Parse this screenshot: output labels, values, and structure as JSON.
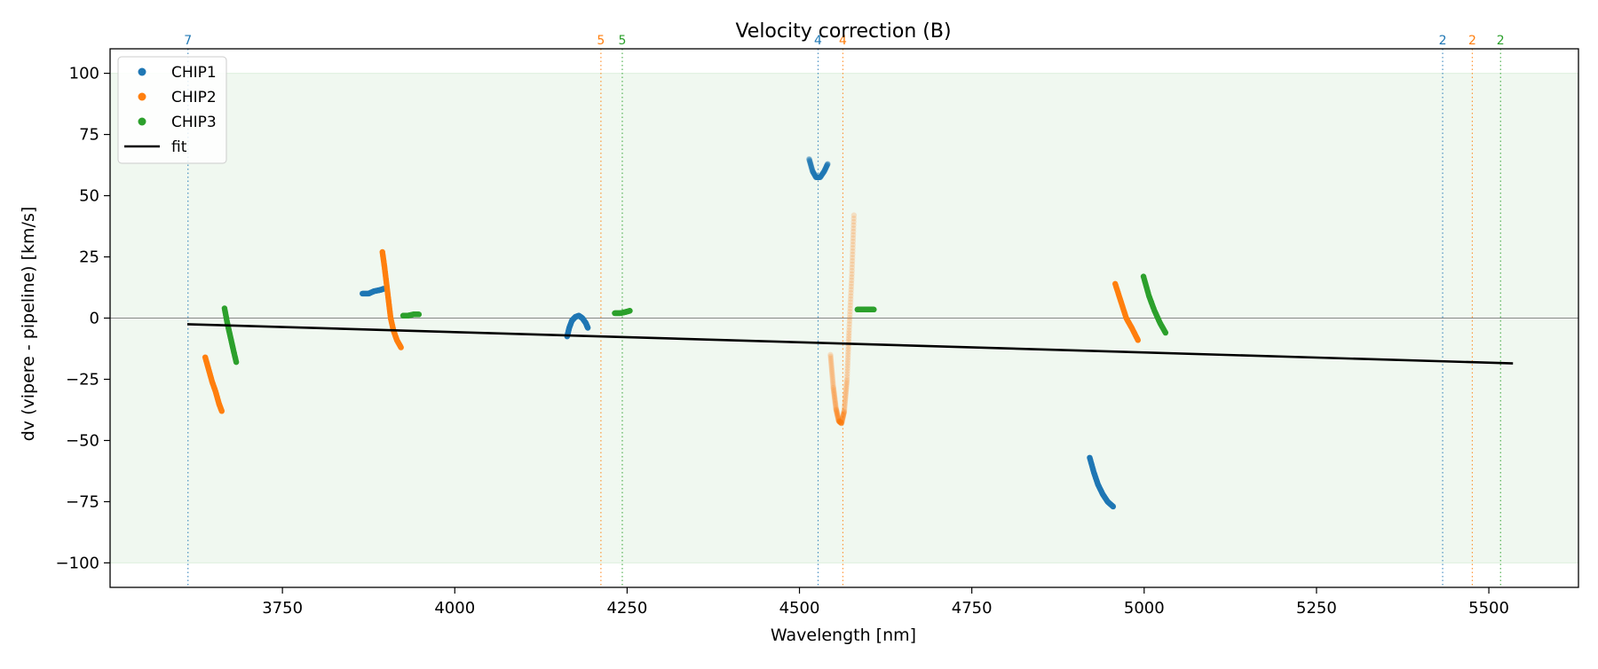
{
  "chart_data": {
    "type": "scatter",
    "title": "Velocity correction (B)",
    "xlabel": "Wavelength [nm]",
    "ylabel": "dv (vipere - pipeline) [km/s]",
    "xlim": [
      3500,
      5630
    ],
    "ylim": [
      -110,
      110
    ],
    "xticks": [
      3750,
      4000,
      4250,
      4500,
      4750,
      5000,
      5250,
      5500
    ],
    "xtick_labels": [
      "3750",
      "4000",
      "4250",
      "4500",
      "4750",
      "5000",
      "5250",
      "5500"
    ],
    "yticks": [
      100,
      75,
      50,
      25,
      0,
      -25,
      -50,
      -75,
      -100
    ],
    "ytick_labels": [
      "100",
      "75",
      "50",
      "25",
      "0",
      "−25",
      "−50",
      "−75",
      "−100"
    ],
    "band": [
      -100,
      100
    ],
    "band_color": "#2ca02c",
    "zero_line": true,
    "legend": {
      "position": "top-left",
      "entries": [
        {
          "label": "CHIP1",
          "kind": "point",
          "color": "#1f77b4"
        },
        {
          "label": "CHIP2",
          "kind": "point",
          "color": "#ff7f0e"
        },
        {
          "label": "CHIP3",
          "kind": "point",
          "color": "#2ca02c"
        },
        {
          "label": "fit",
          "kind": "line",
          "color": "#000000"
        }
      ]
    },
    "fit": {
      "x": [
        3612,
        5535
      ],
      "y": [
        -2.5,
        -18.5
      ],
      "color": "#000000"
    },
    "order_markers": [
      {
        "x": 3613,
        "label": "7",
        "color": "#1f77b4"
      },
      {
        "x": 4212,
        "label": "5",
        "color": "#ff7f0e"
      },
      {
        "x": 4243,
        "label": "5",
        "color": "#2ca02c"
      },
      {
        "x": 4527,
        "label": "4",
        "color": "#1f77b4"
      },
      {
        "x": 4563,
        "label": "4",
        "color": "#ff7f0e"
      },
      {
        "x": 5433,
        "label": "2",
        "color": "#1f77b4"
      },
      {
        "x": 5476,
        "label": "2",
        "color": "#ff7f0e"
      },
      {
        "x": 5517,
        "label": "2",
        "color": "#2ca02c"
      }
    ],
    "series": [
      {
        "chip": "CHIP1",
        "color": "#1f77b4",
        "alpha": 1,
        "x": [
          3866,
          3875,
          3883,
          3892,
          3897
        ],
        "y": [
          10,
          10,
          11,
          11.5,
          12
        ]
      },
      {
        "chip": "CHIP1",
        "color": "#1f77b4",
        "alpha": 1,
        "x": [
          4163,
          4166,
          4170,
          4175,
          4180,
          4185,
          4190,
          4193
        ],
        "y": [
          -7.5,
          -4,
          -1,
          0.5,
          1,
          0,
          -2,
          -4
        ]
      },
      {
        "chip": "CHIP1",
        "color": "#1f77b4",
        "alpha": 0.35,
        "x": [
          4514,
          4519,
          4524,
          4530,
          4536,
          4541
        ],
        "y": [
          65,
          60,
          57.5,
          57.5,
          60,
          63
        ]
      },
      {
        "chip": "CHIP1",
        "color": "#1f77b4",
        "alpha": 1,
        "x": [
          4921,
          4927,
          4933,
          4940,
          4947,
          4955
        ],
        "y": [
          -57,
          -63,
          -68,
          -72,
          -75,
          -77
        ]
      },
      {
        "chip": "CHIP2",
        "color": "#ff7f0e",
        "alpha": 1,
        "x": [
          3638,
          3643,
          3648,
          3653,
          3658,
          3662
        ],
        "y": [
          -16,
          -21,
          -26,
          -30,
          -35,
          -38
        ]
      },
      {
        "chip": "CHIP2",
        "color": "#ff7f0e",
        "alpha": 1,
        "x": [
          3895,
          3898,
          3901,
          3904,
          3907,
          3911,
          3916,
          3922
        ],
        "y": [
          27,
          21,
          14,
          7,
          0,
          -5,
          -9,
          -12
        ]
      },
      {
        "chip": "CHIP2",
        "color": "#ff7f0e",
        "alpha": 0.2,
        "x": [
          4545,
          4549,
          4553,
          4557,
          4561,
          4565,
          4569,
          4572,
          4576,
          4579
        ],
        "y": [
          -15,
          -28,
          -37,
          -42,
          -43,
          -38,
          -25,
          -5,
          18,
          42
        ]
      },
      {
        "chip": "CHIP2",
        "color": "#ff7f0e",
        "alpha": 1,
        "x": [
          4958,
          4966,
          4974,
          4982,
          4991
        ],
        "y": [
          14,
          7,
          0,
          -4,
          -9
        ]
      },
      {
        "chip": "CHIP3",
        "color": "#2ca02c",
        "alpha": 1,
        "x": [
          3666,
          3670,
          3674,
          3678,
          3683
        ],
        "y": [
          4,
          -2,
          -7,
          -12,
          -18
        ]
      },
      {
        "chip": "CHIP3",
        "color": "#2ca02c",
        "alpha": 1,
        "x": [
          3925,
          3932,
          3940,
          3948
        ],
        "y": [
          1,
          1,
          1.5,
          1.5
        ]
      },
      {
        "chip": "CHIP3",
        "color": "#2ca02c",
        "alpha": 1,
        "x": [
          4232,
          4240,
          4248,
          4254
        ],
        "y": [
          2,
          2,
          2.5,
          3
        ]
      },
      {
        "chip": "CHIP3",
        "color": "#2ca02c",
        "alpha": 1,
        "x": [
          4584,
          4592,
          4600,
          4608
        ],
        "y": [
          3.5,
          3.5,
          3.5,
          3.5
        ]
      },
      {
        "chip": "CHIP3",
        "color": "#2ca02c",
        "alpha": 1,
        "x": [
          4999,
          5007,
          5015,
          5023,
          5031
        ],
        "y": [
          17,
          9,
          3,
          -2,
          -6
        ]
      }
    ]
  }
}
